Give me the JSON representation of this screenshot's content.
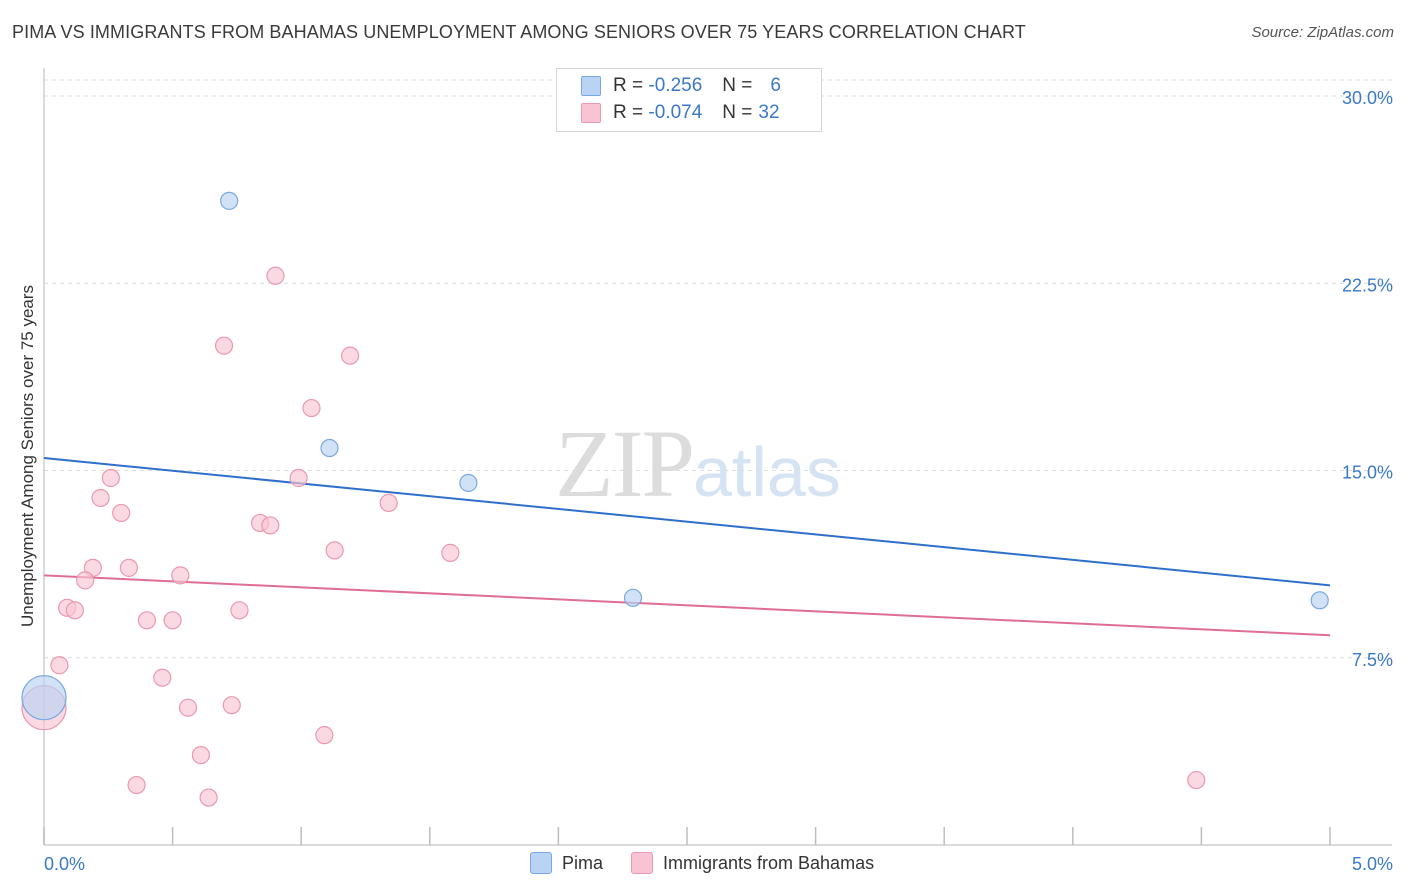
{
  "title": "PIMA VS IMMIGRANTS FROM BAHAMAS UNEMPLOYMENT AMONG SENIORS OVER 75 YEARS CORRELATION CHART",
  "source": "Source: ZipAtlas.com",
  "watermark": {
    "zip": "ZIP",
    "atlas": "atlas"
  },
  "legend_top": [
    {
      "r_label": "R =",
      "r_value": "-0.256",
      "n_label": "N =",
      "n_value": "6"
    },
    {
      "r_label": "R =",
      "r_value": "-0.074",
      "n_label": "N =",
      "n_value": "32"
    }
  ],
  "bottom_legend": [
    {
      "label": "Pima"
    },
    {
      "label": "Immigrants from Bahamas"
    }
  ],
  "colors": {
    "pima_fill": "#b8d3f3",
    "pima_stroke": "#7aa8e0",
    "pima_line": "#2f6fcb",
    "bahamas_fill": "#f8c4d3",
    "bahamas_stroke": "#eb98b1",
    "bahamas_line": "#e06d95",
    "tick_label": "#3a79c9",
    "grid": "#dcdcdc"
  },
  "chart_data": {
    "type": "scatter",
    "title": "PIMA VS IMMIGRANTS FROM BAHAMAS UNEMPLOYMENT AMONG SENIORS OVER 75 YEARS CORRELATION CHART",
    "xlabel": "",
    "ylabel": "Unemployment Among Seniors over 75 years",
    "xlim": [
      0,
      5.0
    ],
    "ylim": [
      0,
      30.0
    ],
    "x_tick_labels": [
      {
        "value": 0,
        "label": "0.0%"
      },
      {
        "value": 5.0,
        "label": "5.0%"
      }
    ],
    "y_ticks": [
      {
        "value": 30.0,
        "label": "30.0%"
      },
      {
        "value": 22.5,
        "label": "22.5%"
      },
      {
        "value": 15.0,
        "label": "15.0%"
      },
      {
        "value": 7.5,
        "label": "7.5%"
      }
    ],
    "legend_position": "top-center",
    "series": [
      {
        "name": "Pima",
        "r": -0.256,
        "n": 6,
        "points": [
          {
            "x": 0.72,
            "y": 25.8,
            "size": 1
          },
          {
            "x": 1.11,
            "y": 15.9,
            "size": 1
          },
          {
            "x": 1.65,
            "y": 14.5,
            "size": 1
          },
          {
            "x": 2.29,
            "y": 9.9,
            "size": 1
          },
          {
            "x": 4.96,
            "y": 9.8,
            "size": 1
          },
          {
            "x": 0.0,
            "y": 5.9,
            "size": 2
          }
        ],
        "trend": {
          "x": [
            0,
            5.0
          ],
          "y": [
            15.5,
            10.4
          ]
        }
      },
      {
        "name": "Immigrants from Bahamas",
        "r": -0.074,
        "n": 32,
        "points": [
          {
            "x": 0.9,
            "y": 22.8,
            "size": 1
          },
          {
            "x": 0.7,
            "y": 20.0,
            "size": 1
          },
          {
            "x": 1.19,
            "y": 19.6,
            "size": 1
          },
          {
            "x": 1.04,
            "y": 17.5,
            "size": 1
          },
          {
            "x": 0.26,
            "y": 14.7,
            "size": 1
          },
          {
            "x": 0.99,
            "y": 14.7,
            "size": 1
          },
          {
            "x": 0.22,
            "y": 13.9,
            "size": 1
          },
          {
            "x": 1.34,
            "y": 13.7,
            "size": 1
          },
          {
            "x": 0.3,
            "y": 13.3,
            "size": 1
          },
          {
            "x": 0.84,
            "y": 12.9,
            "size": 1
          },
          {
            "x": 0.88,
            "y": 12.8,
            "size": 1
          },
          {
            "x": 1.13,
            "y": 11.8,
            "size": 1
          },
          {
            "x": 1.58,
            "y": 11.7,
            "size": 1
          },
          {
            "x": 0.19,
            "y": 11.1,
            "size": 1
          },
          {
            "x": 0.33,
            "y": 11.1,
            "size": 1
          },
          {
            "x": 0.53,
            "y": 10.8,
            "size": 1
          },
          {
            "x": 0.16,
            "y": 10.6,
            "size": 1
          },
          {
            "x": 0.09,
            "y": 9.5,
            "size": 1
          },
          {
            "x": 0.12,
            "y": 9.4,
            "size": 1
          },
          {
            "x": 0.76,
            "y": 9.4,
            "size": 1
          },
          {
            "x": 0.4,
            "y": 9.0,
            "size": 1
          },
          {
            "x": 0.5,
            "y": 9.0,
            "size": 1
          },
          {
            "x": 0.06,
            "y": 7.2,
            "size": 1
          },
          {
            "x": 0.46,
            "y": 6.7,
            "size": 1
          },
          {
            "x": 0.56,
            "y": 5.5,
            "size": 1
          },
          {
            "x": 0.73,
            "y": 5.6,
            "size": 1
          },
          {
            "x": 1.09,
            "y": 4.4,
            "size": 1
          },
          {
            "x": 0.61,
            "y": 3.6,
            "size": 1
          },
          {
            "x": 0.36,
            "y": 2.4,
            "size": 1
          },
          {
            "x": 0.64,
            "y": 1.9,
            "size": 1
          },
          {
            "x": 4.48,
            "y": 2.6,
            "size": 1
          },
          {
            "x": 0.0,
            "y": 5.5,
            "size": 2
          }
        ],
        "trend": {
          "x": [
            0,
            5.0
          ],
          "y": [
            10.8,
            8.4
          ]
        }
      }
    ]
  }
}
